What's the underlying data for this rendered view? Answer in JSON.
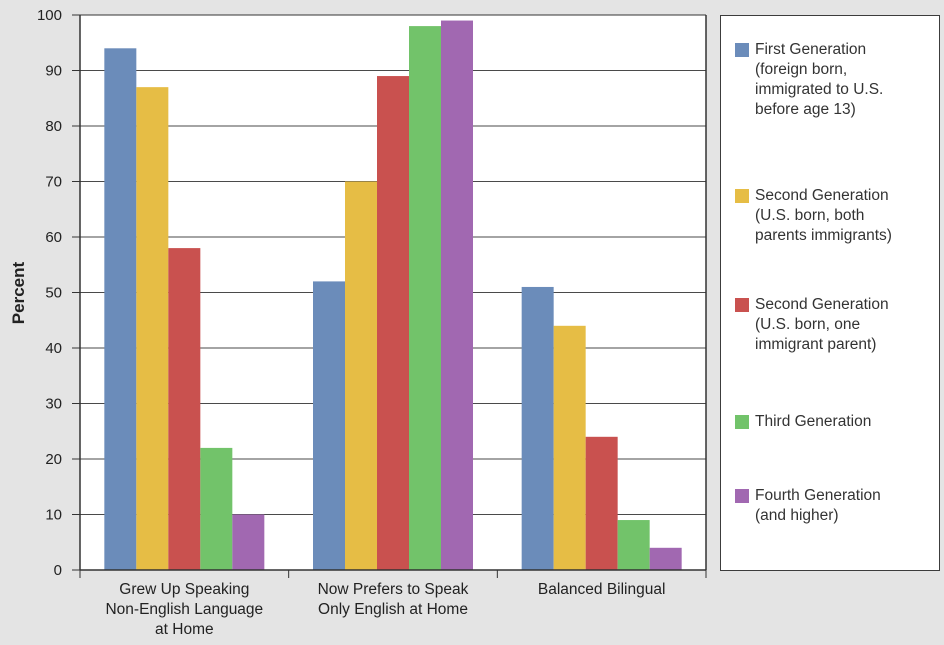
{
  "chart_data": {
    "type": "bar",
    "title": "",
    "xlabel": "",
    "ylabel": "Percent",
    "ylim": [
      0,
      100
    ],
    "yticks": [
      0,
      10,
      20,
      30,
      40,
      50,
      60,
      70,
      80,
      90,
      100
    ],
    "grid": true,
    "legend_position": "right",
    "categories": [
      "Grew Up Speaking\nNon-English Language\nat Home",
      "Now Prefers to Speak\nOnly English at Home",
      "Balanced Bilingual"
    ],
    "series": [
      {
        "name": "First Generation\n(foreign born,\nimmigrated to U.S.\nbefore age 13)",
        "color": "#6b8cba",
        "values": [
          94,
          52,
          51
        ]
      },
      {
        "name": "Second Generation\n(U.S. born, both\nparents immigrants)",
        "color": "#e6bd45",
        "values": [
          87,
          70,
          44
        ]
      },
      {
        "name": "Second Generation\n(U.S. born, one\nimmigrant parent)",
        "color": "#c9514f",
        "values": [
          58,
          89,
          24
        ]
      },
      {
        "name": "Third Generation",
        "color": "#72c36a",
        "values": [
          22,
          98,
          9
        ]
      },
      {
        "name": "Fourth Generation\n(and higher)",
        "color": "#a168b1",
        "values": [
          10,
          99,
          4
        ]
      }
    ]
  }
}
